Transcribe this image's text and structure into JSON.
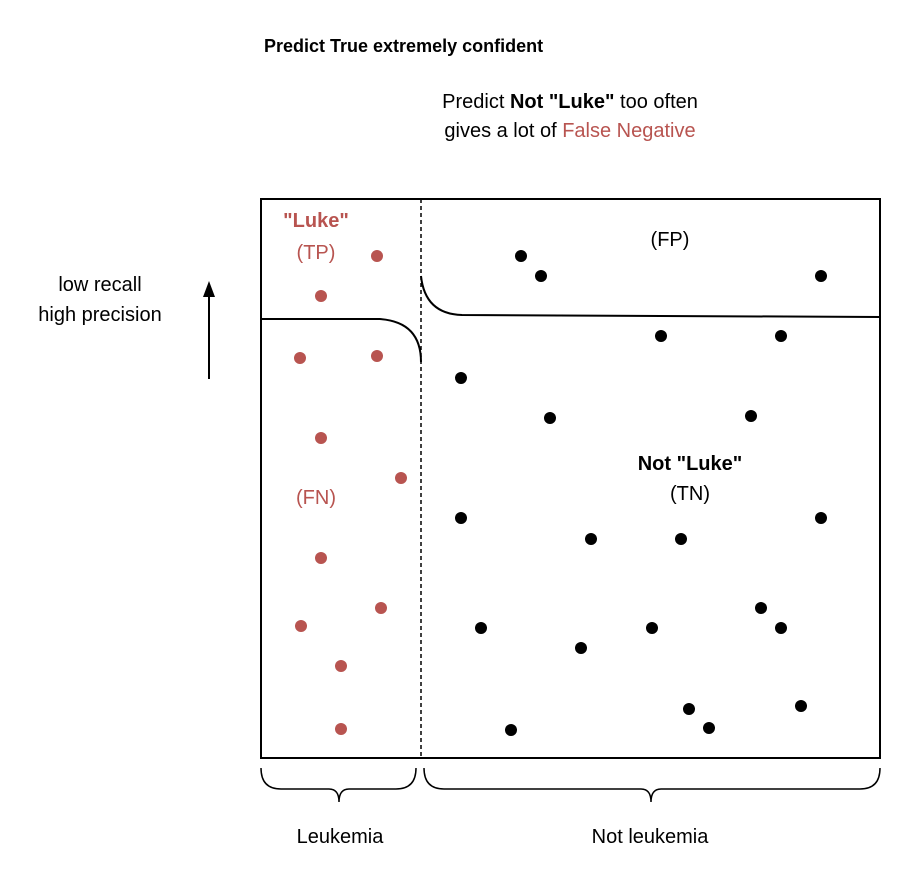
{
  "title": "Predict True extremely confident",
  "note": {
    "line1_prefix": "Predict ",
    "line1_bold": "Not \"Luke\"",
    "line1_suffix": " too often",
    "line2_prefix": "gives a lot of ",
    "line2_highlight": "False Negative"
  },
  "side_label": {
    "line1": "low recall",
    "line2": "high precision"
  },
  "regions": {
    "tp_name": "\"Luke\"",
    "tp_code": "(TP)",
    "fn_code": "(FN)",
    "fp_code": "(FP)",
    "tn_name": "Not \"Luke\"",
    "tn_code": "(TN)"
  },
  "groups": {
    "left": "Leukemia",
    "right": "Not leukemia"
  },
  "colors": {
    "positive": "#b85450",
    "negative": "#000000"
  }
}
